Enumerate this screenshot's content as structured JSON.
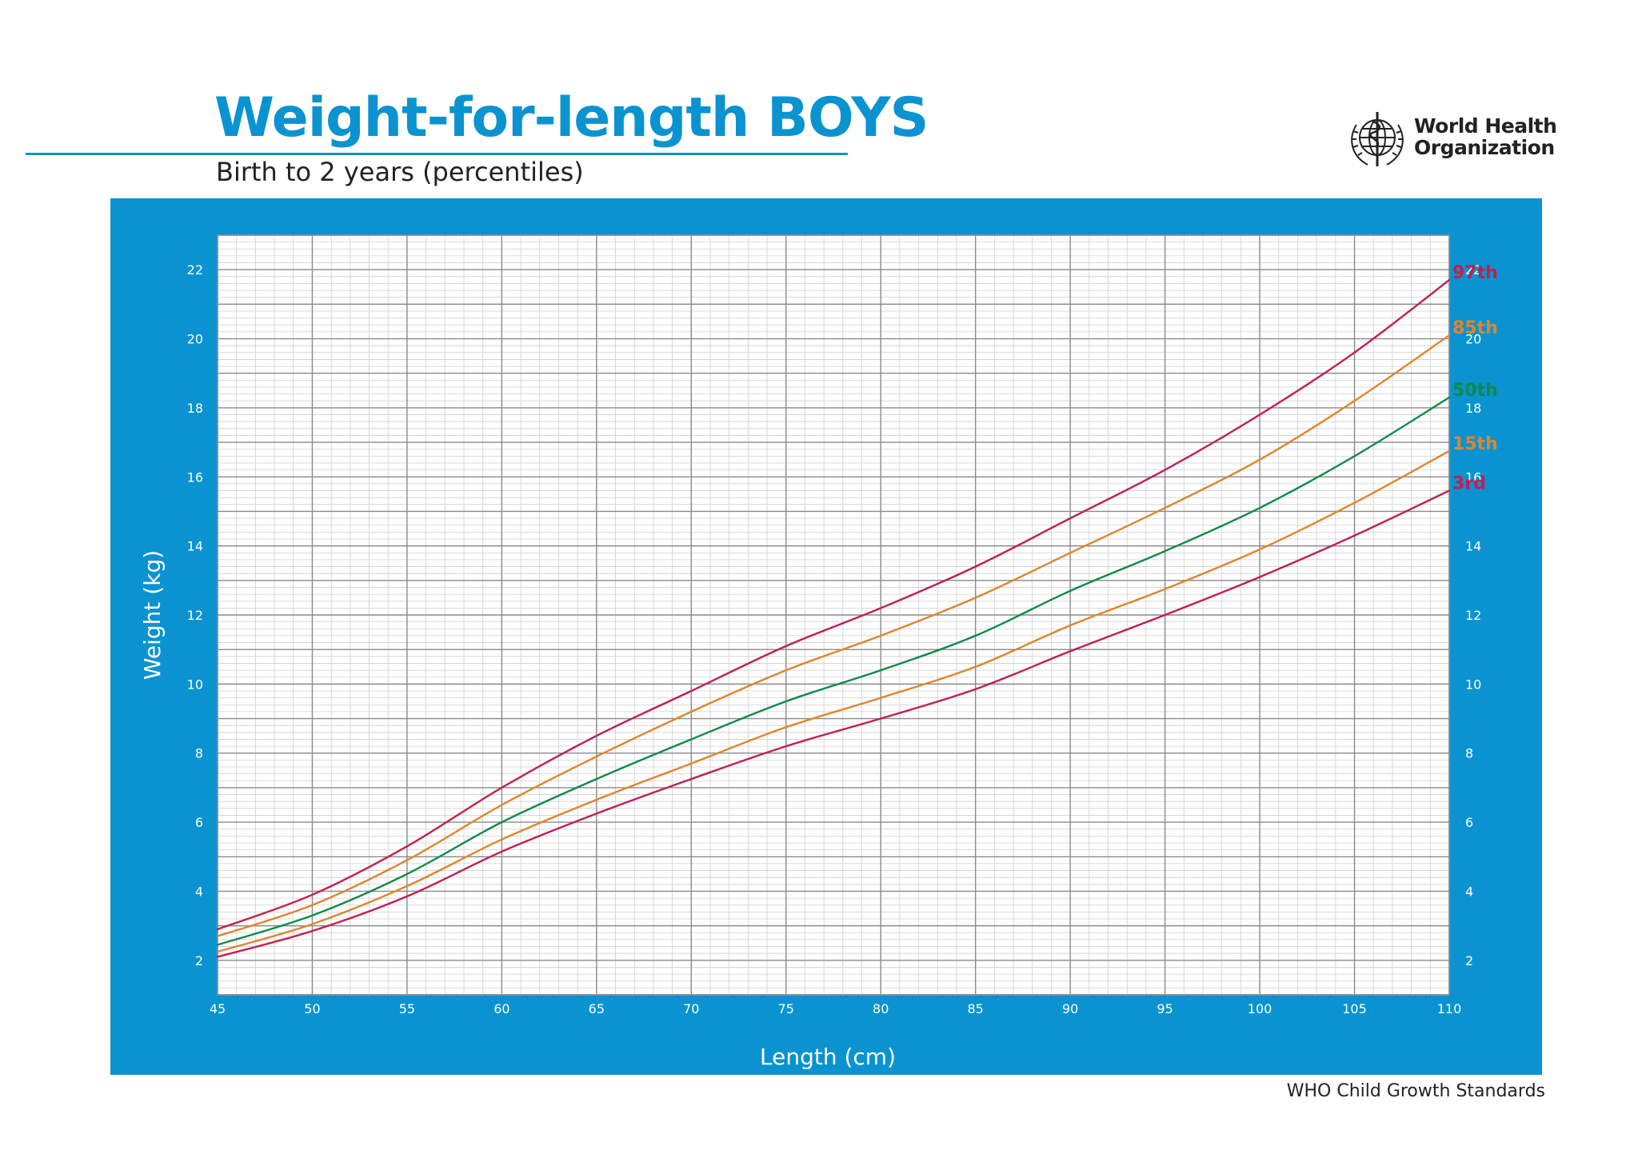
{
  "header": {
    "title": "Weight-for-length BOYS",
    "subtitle": "Birth to 2 years (percentiles)",
    "logo": {
      "icon": "who-emblem-icon",
      "line1": "World Health",
      "line2": "Organization"
    }
  },
  "footer": {
    "text": "WHO Child Growth Standards"
  },
  "colors": {
    "frame": "#0a93d0",
    "grid_major": "#8a8a8a",
    "grid_minor": "#cfcfcf",
    "p3_p97": "#c21f4e",
    "p15_p85": "#e0852c",
    "p50": "#0f8a4a"
  },
  "chart_data": {
    "type": "line",
    "xlabel": "Length (cm)",
    "ylabel": "Weight (kg)",
    "xlim": [
      45,
      110
    ],
    "ylim": [
      1,
      23
    ],
    "xticks": [
      45,
      50,
      55,
      60,
      65,
      70,
      75,
      80,
      85,
      90,
      95,
      100,
      105,
      110
    ],
    "yticks": [
      2,
      4,
      6,
      8,
      10,
      12,
      14,
      16,
      18,
      20,
      22
    ],
    "grid": true,
    "x": [
      45,
      50,
      55,
      60,
      65,
      70,
      75,
      80,
      85,
      90,
      95,
      100,
      105,
      110
    ],
    "series": [
      {
        "name": "97th",
        "color": "#c21f4e",
        "values": [
          2.9,
          3.9,
          5.3,
          7.0,
          8.5,
          9.8,
          11.1,
          12.2,
          13.4,
          14.8,
          16.2,
          17.8,
          19.6,
          21.7
        ]
      },
      {
        "name": "85th",
        "color": "#e0852c",
        "values": [
          2.7,
          3.6,
          4.9,
          6.5,
          7.9,
          9.2,
          10.4,
          11.4,
          12.5,
          13.8,
          15.1,
          16.5,
          18.2,
          20.1
        ]
      },
      {
        "name": "50th",
        "color": "#0f8a4a",
        "values": [
          2.45,
          3.3,
          4.5,
          6.0,
          7.25,
          8.4,
          9.5,
          10.4,
          11.4,
          12.7,
          13.85,
          15.1,
          16.6,
          18.3
        ]
      },
      {
        "name": "15th",
        "color": "#e0852c",
        "values": [
          2.25,
          3.05,
          4.15,
          5.5,
          6.65,
          7.7,
          8.75,
          9.6,
          10.5,
          11.7,
          12.75,
          13.9,
          15.25,
          16.75
        ]
      },
      {
        "name": "3rd",
        "color": "#c21f4e",
        "values": [
          2.1,
          2.85,
          3.85,
          5.15,
          6.25,
          7.25,
          8.2,
          9.0,
          9.85,
          10.95,
          12.0,
          13.1,
          14.3,
          15.6
        ]
      }
    ]
  }
}
